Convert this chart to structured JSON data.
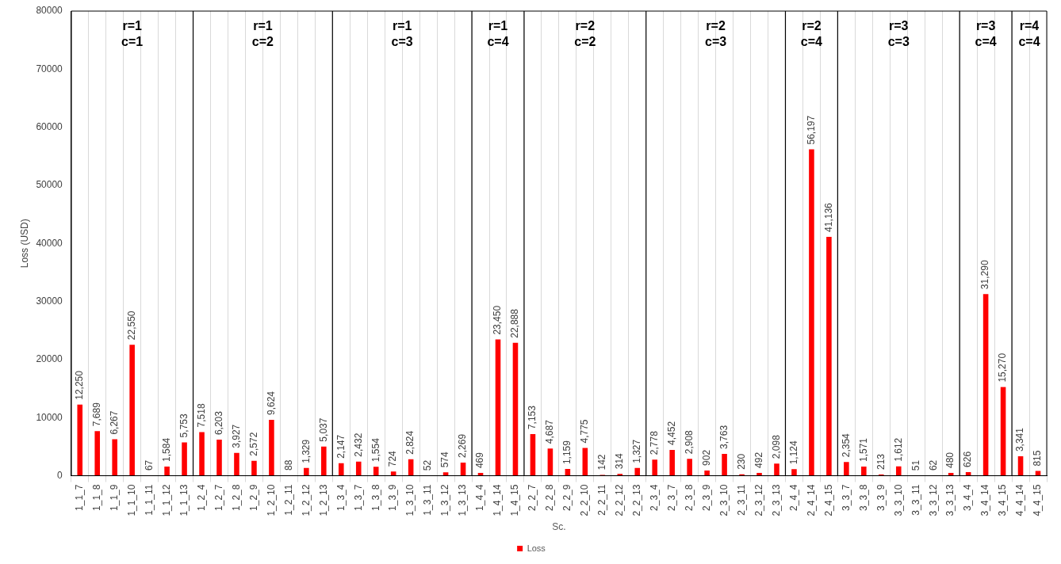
{
  "chart_data": {
    "type": "bar",
    "xlabel": "Sc.",
    "ylabel": "Loss (USD)",
    "categories": [
      "1_1_7",
      "1_1_8",
      "1_1_9",
      "1_1_10",
      "1_1_11",
      "1_1_12",
      "1_1_13",
      "1_2_4",
      "1_2_7",
      "1_2_8",
      "1_2_9",
      "1_2_10",
      "1_2_11",
      "1_2_12",
      "1_2_13",
      "1_3_4",
      "1_3_7",
      "1_3_8",
      "1_3_9",
      "1_3_10",
      "1_3_11",
      "1_3_12",
      "1_3_13",
      "1_4_4",
      "1_4_14",
      "1_4_15",
      "2_2_7",
      "2_2_8",
      "2_2_9",
      "2_2_10",
      "2_2_11",
      "2_2_12",
      "2_2_13",
      "2_3_4",
      "2_3_7",
      "2_3_8",
      "2_3_9",
      "2_3_10",
      "2_3_11",
      "2_3_12",
      "2_3_13",
      "2_4_4",
      "2_4_14",
      "2_4_15",
      "3_3_7",
      "3_3_8",
      "3_3_9",
      "3_3_10",
      "3_3_11",
      "3_3_12",
      "3_3_13",
      "3_4_4",
      "3_4_14",
      "3_4_15",
      "4_4_14",
      "4_4_15"
    ],
    "series": [
      {
        "name": "Loss",
        "color": "#ff0000",
        "values": [
          12250,
          7689,
          6267,
          22550,
          67,
          1584,
          5753,
          7518,
          6203,
          3927,
          2572,
          9624,
          88,
          1329,
          5037,
          2147,
          2432,
          1554,
          724,
          2824,
          52,
          574,
          2269,
          469,
          23450,
          22888,
          7153,
          4687,
          1159,
          4775,
          142,
          314,
          1327,
          2778,
          4452,
          2908,
          902,
          3763,
          230,
          492,
          2098,
          1124,
          56197,
          41136,
          2354,
          1571,
          213,
          1612,
          51,
          62,
          480,
          626,
          31290,
          15270,
          3341,
          815
        ],
        "value_labels": [
          "12,250",
          "7,689",
          "6,267",
          "22,550",
          "67",
          "1,584",
          "5,753",
          "7,518",
          "6,203",
          "3,927",
          "2,572",
          "9,624",
          "88",
          "1,329",
          "5,037",
          "2,147",
          "2,432",
          "1,554",
          "724",
          "2,824",
          "52",
          "574",
          "2,269",
          "469",
          "23,450",
          "22,888",
          "7,153",
          "4,687",
          "1,159",
          "4,775",
          "142",
          "314",
          "1,327",
          "2,778",
          "4,452",
          "2,908",
          "902",
          "3,763",
          "230",
          "492",
          "2,098",
          "1,124",
          "56,197",
          "41,136",
          "2,354",
          "1,571",
          "213",
          "1,612",
          "51",
          "62",
          "480",
          "626",
          "31,290",
          "15,270",
          "3,341",
          "815"
        ]
      }
    ],
    "ylim": [
      0,
      80000
    ],
    "yticks": [
      0,
      10000,
      20000,
      30000,
      40000,
      50000,
      60000,
      70000,
      80000
    ],
    "grid": "x",
    "legend": "bottom",
    "annotations": [
      "r=1\nc=1",
      "r=1\nc=2",
      "r=1\nc=3",
      "r=1\nc=4",
      "r=2\nc=2",
      "r=2\nc=3",
      "r=2\nc=4",
      "r=3\nc=3",
      "r=3\nc=4",
      "r=4\nc=4"
    ]
  }
}
